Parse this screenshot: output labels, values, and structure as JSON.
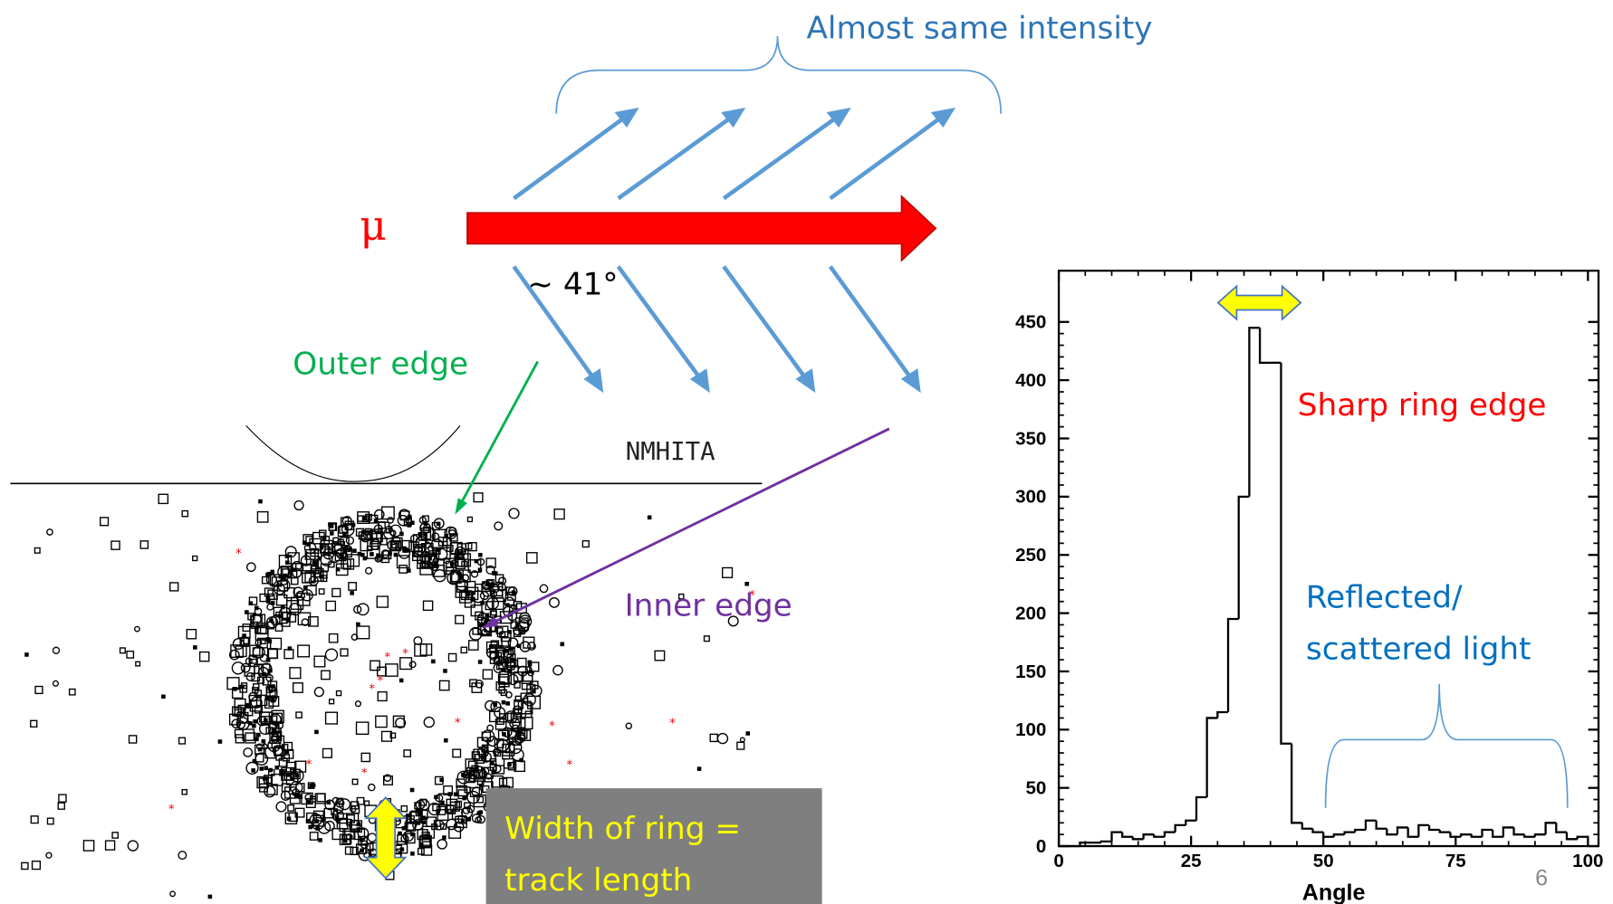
{
  "chart_data": {
    "type": "histogram",
    "xlabel": "Angle",
    "bins": [
      0,
      2,
      4,
      6,
      8,
      10,
      12,
      14,
      16,
      18,
      20,
      22,
      24,
      26,
      28,
      30,
      32,
      34,
      36,
      38,
      40,
      42,
      44,
      46,
      48,
      50,
      52,
      54,
      56,
      58,
      60,
      62,
      64,
      66,
      68,
      70,
      72,
      74,
      76,
      78,
      80,
      82,
      84,
      86,
      88,
      90,
      92,
      94,
      96,
      98,
      100
    ],
    "counts": [
      0,
      0,
      3,
      3,
      4,
      12,
      8,
      6,
      10,
      8,
      12,
      18,
      22,
      42,
      110,
      115,
      195,
      300,
      445,
      415,
      415,
      88,
      20,
      15,
      12,
      8,
      10,
      12,
      14,
      22,
      15,
      10,
      16,
      8,
      18,
      14,
      12,
      8,
      10,
      8,
      14,
      8,
      16,
      10,
      8,
      10,
      20,
      12,
      6,
      8
    ],
    "color": "#000000",
    "xlim": [
      0,
      102
    ],
    "ylim": [
      0,
      494
    ],
    "xticks": [
      0,
      25,
      50,
      75,
      100
    ],
    "yticks": [
      0,
      50,
      100,
      150,
      200,
      250,
      300,
      350,
      400,
      450
    ]
  },
  "annotations": {
    "top_brace": "Almost same intensity",
    "particle": "μ",
    "angle": "~ 41°",
    "outer_edge": "Outer edge",
    "inner_edge": "Inner edge",
    "detector_label": "NMHITA",
    "ring_width": [
      "Width of ring =",
      "track length"
    ],
    "sharp_edge": "Sharp ring edge",
    "reflected": [
      "Reflected/",
      "scattered light"
    ],
    "page_number": "6"
  }
}
